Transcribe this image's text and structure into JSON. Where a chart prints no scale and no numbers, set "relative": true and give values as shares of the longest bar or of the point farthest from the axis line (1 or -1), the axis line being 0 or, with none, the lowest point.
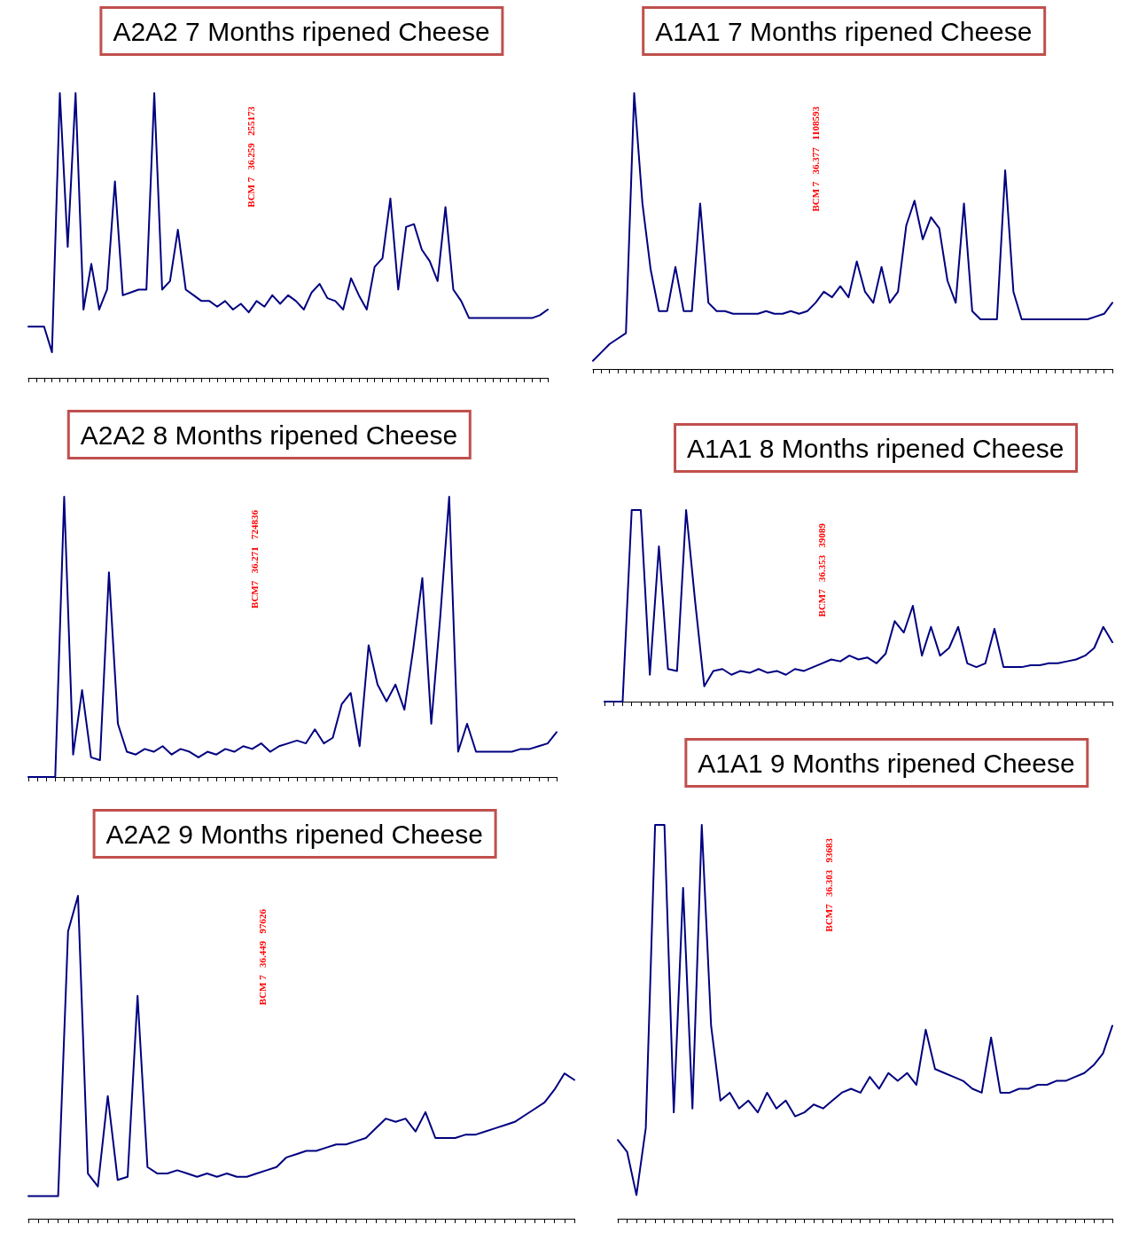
{
  "chart_data": [
    {
      "type": "line",
      "title": "A2A2 7 Months ripened Cheese",
      "relative": true,
      "marker": "none",
      "line_style": "solid",
      "annotations": [
        "BCM 7   36.259   255173"
      ],
      "categories": [
        null,
        null,
        null,
        null,
        null,
        null,
        null,
        null,
        null,
        null,
        null,
        null,
        null,
        null,
        null,
        null,
        null,
        null,
        null,
        null,
        null,
        null,
        null,
        null,
        null,
        null,
        null,
        null,
        null,
        null,
        null,
        null,
        null,
        null,
        null,
        null,
        null,
        null,
        null,
        null,
        null,
        null,
        null,
        null,
        null,
        null,
        null,
        null,
        null,
        null,
        null,
        null,
        null,
        null,
        null,
        null,
        null,
        null,
        null,
        null,
        null,
        null,
        null,
        null,
        null,
        null,
        null
      ],
      "series": [
        {
          "color": "#000080",
          "values": [
            0.18,
            0.18,
            0.18,
            0.09,
            1,
            0.46,
            1,
            0.24,
            0.4,
            0.24,
            0.31,
            0.69,
            0.29,
            0.3,
            0.31,
            0.31,
            1,
            0.31,
            0.34,
            0.52,
            0.31,
            0.29,
            0.27,
            0.27,
            0.25,
            0.27,
            0.24,
            0.26,
            0.23,
            0.27,
            0.25,
            0.29,
            0.26,
            0.29,
            0.27,
            0.24,
            0.3,
            0.33,
            0.28,
            0.27,
            0.24,
            0.35,
            0.29,
            0.24,
            0.39,
            0.42,
            0.63,
            0.31,
            0.53,
            0.54,
            0.45,
            0.41,
            0.34,
            0.6,
            0.31,
            0.27,
            0.21,
            0.21,
            0.21,
            0.21,
            0.21,
            0.21,
            0.21,
            0.21,
            0.21,
            0.22,
            0.24
          ]
        }
      ]
    },
    {
      "type": "line",
      "title": "A1A1 7 Months ripened Cheese",
      "relative": true,
      "marker": "none",
      "line_style": "solid",
      "annotations": [
        "BCM 7   36.377   1108593"
      ],
      "categories": [
        null,
        null,
        null,
        null,
        null,
        null,
        null,
        null,
        null,
        null,
        null,
        null,
        null,
        null,
        null,
        null,
        null,
        null,
        null,
        null,
        null,
        null,
        null,
        null,
        null,
        null,
        null,
        null,
        null,
        null,
        null,
        null,
        null,
        null,
        null,
        null,
        null,
        null,
        null,
        null,
        null,
        null,
        null,
        null,
        null,
        null,
        null,
        null,
        null,
        null,
        null,
        null,
        null,
        null,
        null,
        null,
        null,
        null,
        null,
        null,
        null,
        null,
        null,
        null
      ],
      "series": [
        {
          "color": "#000080",
          "values": [
            0.03,
            0.06,
            0.09,
            0.11,
            0.13,
            1,
            0.6,
            0.36,
            0.21,
            0.21,
            0.37,
            0.21,
            0.21,
            0.6,
            0.24,
            0.21,
            0.21,
            0.2,
            0.2,
            0.2,
            0.2,
            0.21,
            0.2,
            0.2,
            0.21,
            0.2,
            0.21,
            0.24,
            0.28,
            0.26,
            0.3,
            0.26,
            0.39,
            0.28,
            0.24,
            0.37,
            0.24,
            0.28,
            0.52,
            0.61,
            0.47,
            0.55,
            0.51,
            0.32,
            0.24,
            0.6,
            0.21,
            0.18,
            0.18,
            0.18,
            0.72,
            0.28,
            0.18,
            0.18,
            0.18,
            0.18,
            0.18,
            0.18,
            0.18,
            0.18,
            0.18,
            0.19,
            0.2,
            0.24
          ]
        }
      ]
    },
    {
      "type": "line",
      "title": "A2A2 8 Months ripened Cheese",
      "relative": true,
      "marker": "none",
      "line_style": "solid",
      "annotations": [
        "BCM7   36.271   724836"
      ],
      "categories": [
        null,
        null,
        null,
        null,
        null,
        null,
        null,
        null,
        null,
        null,
        null,
        null,
        null,
        null,
        null,
        null,
        null,
        null,
        null,
        null,
        null,
        null,
        null,
        null,
        null,
        null,
        null,
        null,
        null,
        null,
        null,
        null,
        null,
        null,
        null,
        null,
        null,
        null,
        null,
        null,
        null,
        null,
        null,
        null,
        null,
        null,
        null,
        null,
        null,
        null,
        null,
        null,
        null,
        null,
        null,
        null,
        null,
        null,
        null,
        null
      ],
      "series": [
        {
          "color": "#000080",
          "values": [
            0,
            0,
            0,
            0,
            1,
            0.08,
            0.31,
            0.07,
            0.06,
            0.73,
            0.19,
            0.09,
            0.08,
            0.1,
            0.09,
            0.11,
            0.08,
            0.1,
            0.09,
            0.07,
            0.09,
            0.08,
            0.1,
            0.09,
            0.11,
            0.1,
            0.12,
            0.09,
            0.11,
            0.12,
            0.13,
            0.12,
            0.17,
            0.12,
            0.14,
            0.26,
            0.3,
            0.11,
            0.47,
            0.33,
            0.27,
            0.33,
            0.24,
            0.46,
            0.71,
            0.19,
            0.57,
            1,
            0.09,
            0.19,
            0.09,
            0.09,
            0.09,
            0.09,
            0.09,
            0.1,
            0.1,
            0.11,
            0.12,
            0.16
          ]
        }
      ]
    },
    {
      "type": "line",
      "title": "A1A1 8 Months ripened Cheese",
      "relative": true,
      "marker": "none",
      "line_style": "solid",
      "annotations": [
        "BCM7   36.353   39089"
      ],
      "categories": [
        null,
        null,
        null,
        null,
        null,
        null,
        null,
        null,
        null,
        null,
        null,
        null,
        null,
        null,
        null,
        null,
        null,
        null,
        null,
        null,
        null,
        null,
        null,
        null,
        null,
        null,
        null,
        null,
        null,
        null,
        null,
        null,
        null,
        null,
        null,
        null,
        null,
        null,
        null,
        null,
        null,
        null,
        null,
        null,
        null,
        null,
        null,
        null,
        null,
        null,
        null,
        null,
        null,
        null,
        null,
        null,
        null
      ],
      "series": [
        {
          "color": "#000080",
          "values": [
            0,
            0,
            0,
            1,
            1,
            0.14,
            0.81,
            0.17,
            0.16,
            1,
            0.52,
            0.08,
            0.16,
            0.17,
            0.14,
            0.16,
            0.15,
            0.17,
            0.15,
            0.16,
            0.14,
            0.17,
            0.16,
            0.18,
            0.2,
            0.22,
            0.21,
            0.24,
            0.22,
            0.23,
            0.2,
            0.25,
            0.42,
            0.36,
            0.5,
            0.24,
            0.39,
            0.24,
            0.28,
            0.39,
            0.2,
            0.18,
            0.2,
            0.38,
            0.18,
            0.18,
            0.18,
            0.19,
            0.19,
            0.2,
            0.2,
            0.21,
            0.22,
            0.24,
            0.28,
            0.39,
            0.31
          ]
        }
      ]
    },
    {
      "type": "line",
      "title": "A2A2 9 Months ripened Cheese",
      "relative": true,
      "marker": "none",
      "line_style": "solid",
      "annotations": [
        "BCM 7   36.449   97626"
      ],
      "categories": [
        null,
        null,
        null,
        null,
        null,
        null,
        null,
        null,
        null,
        null,
        null,
        null,
        null,
        null,
        null,
        null,
        null,
        null,
        null,
        null,
        null,
        null,
        null,
        null,
        null,
        null,
        null,
        null,
        null,
        null,
        null,
        null,
        null,
        null,
        null,
        null,
        null,
        null,
        null,
        null,
        null,
        null,
        null,
        null,
        null,
        null,
        null,
        null,
        null,
        null,
        null,
        null,
        null,
        null,
        null,
        null
      ],
      "series": [
        {
          "color": "#000080",
          "values": [
            0.07,
            0.07,
            0.07,
            0.07,
            0.89,
            1,
            0.14,
            0.1,
            0.38,
            0.12,
            0.13,
            0.69,
            0.16,
            0.14,
            0.14,
            0.15,
            0.14,
            0.13,
            0.14,
            0.13,
            0.14,
            0.13,
            0.13,
            0.14,
            0.15,
            0.16,
            0.19,
            0.2,
            0.21,
            0.21,
            0.22,
            0.23,
            0.23,
            0.24,
            0.25,
            0.28,
            0.31,
            0.3,
            0.31,
            0.27,
            0.33,
            0.25,
            0.25,
            0.25,
            0.26,
            0.26,
            0.27,
            0.28,
            0.29,
            0.3,
            0.32,
            0.34,
            0.36,
            0.4,
            0.45,
            0.43
          ]
        }
      ]
    },
    {
      "type": "line",
      "title": "A1A1 9 Months ripened Cheese",
      "relative": true,
      "marker": "none",
      "line_style": "solid",
      "annotations": [
        "BCM7   36.303   93683"
      ],
      "categories": [
        null,
        null,
        null,
        null,
        null,
        null,
        null,
        null,
        null,
        null,
        null,
        null,
        null,
        null,
        null,
        null,
        null,
        null,
        null,
        null,
        null,
        null,
        null,
        null,
        null,
        null,
        null,
        null,
        null,
        null,
        null,
        null,
        null,
        null,
        null,
        null,
        null,
        null,
        null,
        null,
        null,
        null,
        null,
        null,
        null,
        null,
        null,
        null,
        null,
        null,
        null,
        null,
        null,
        null
      ],
      "series": [
        {
          "color": "#000080",
          "values": [
            0.2,
            0.17,
            0.06,
            0.23,
            1,
            1,
            0.27,
            0.84,
            0.28,
            1,
            0.49,
            0.3,
            0.32,
            0.28,
            0.3,
            0.27,
            0.32,
            0.28,
            0.3,
            0.26,
            0.27,
            0.29,
            0.28,
            0.3,
            0.32,
            0.33,
            0.32,
            0.36,
            0.33,
            0.37,
            0.35,
            0.37,
            0.34,
            0.48,
            0.38,
            0.37,
            0.36,
            0.35,
            0.33,
            0.32,
            0.46,
            0.32,
            0.32,
            0.33,
            0.33,
            0.34,
            0.34,
            0.35,
            0.35,
            0.36,
            0.37,
            0.39,
            0.42,
            0.49
          ]
        }
      ]
    }
  ]
}
